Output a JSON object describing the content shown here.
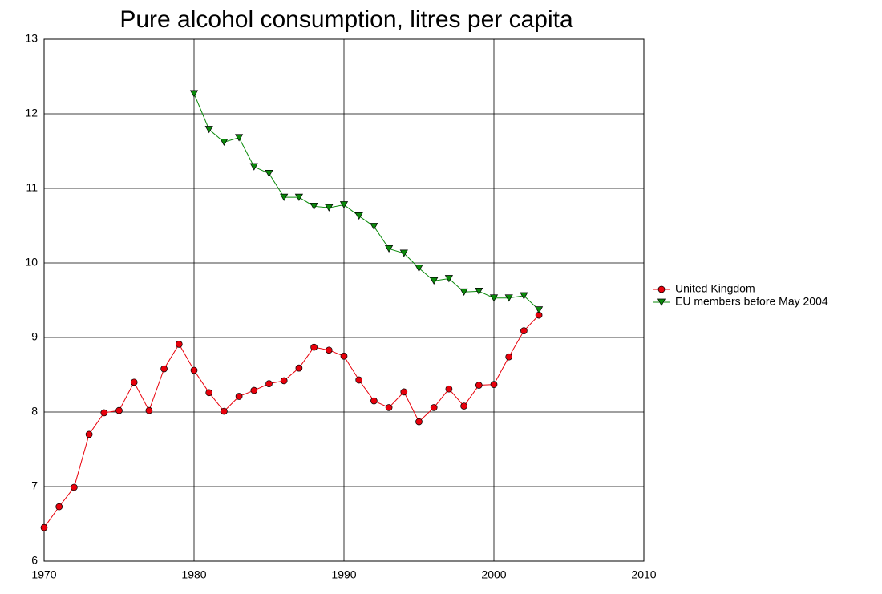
{
  "chart_data": {
    "type": "line",
    "title": "Pure alcohol consumption, litres per capita",
    "x": [
      1970,
      1971,
      1972,
      1973,
      1974,
      1975,
      1976,
      1977,
      1978,
      1979,
      1980,
      1981,
      1982,
      1983,
      1984,
      1985,
      1986,
      1987,
      1988,
      1989,
      1990,
      1991,
      1992,
      1993,
      1994,
      1995,
      1996,
      1997,
      1998,
      1999,
      2000,
      2001,
      2002,
      2003
    ],
    "series": [
      {
        "name": "United Kingdom",
        "color": "#e8000b",
        "marker": "circle",
        "values": [
          6.45,
          6.73,
          6.99,
          7.7,
          7.99,
          8.02,
          8.4,
          8.02,
          8.58,
          8.91,
          8.56,
          8.26,
          8.01,
          8.21,
          8.29,
          8.38,
          8.42,
          8.59,
          8.87,
          8.83,
          8.75,
          8.43,
          8.15,
          8.06,
          8.27,
          7.87,
          8.06,
          8.31,
          8.08,
          8.36,
          8.37,
          8.74,
          9.09,
          9.3
        ]
      },
      {
        "name": "EU members before May 2004",
        "color": "#0a8a0a",
        "marker": "triangle-down",
        "values": [
          null,
          null,
          null,
          null,
          null,
          null,
          null,
          null,
          null,
          null,
          12.27,
          11.79,
          11.62,
          11.68,
          11.29,
          11.2,
          10.88,
          10.88,
          10.76,
          10.74,
          10.78,
          10.63,
          10.49,
          10.19,
          10.13,
          9.93,
          9.76,
          9.79,
          9.61,
          9.62,
          9.53,
          9.53,
          9.56,
          9.37
        ]
      }
    ],
    "xlim": [
      1970,
      2010
    ],
    "xticks": [
      1970,
      1980,
      1990,
      2000,
      2010
    ],
    "ylim": [
      6,
      13
    ],
    "yticks": [
      6,
      7,
      8,
      9,
      10,
      11,
      12,
      13
    ],
    "grid": true,
    "legend": "right"
  }
}
